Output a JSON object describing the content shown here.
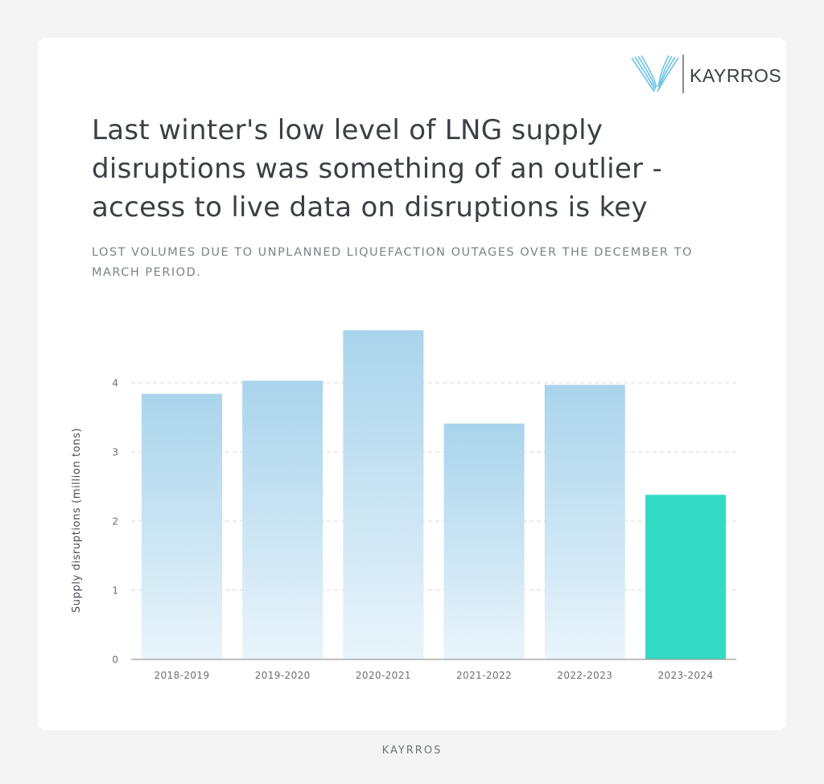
{
  "brand": {
    "logo_text": "KAYRROS",
    "footer_text": "KAYRROS"
  },
  "header": {
    "title": "Last winter's low level of LNG supply disruptions was something of an outlier - access to live data on disruptions is key",
    "subtitle": "LOST VOLUMES DUE TO UNPLANNED LIQUEFACTION OUTAGES OVER THE DECEMBER TO MARCH PERIOD."
  },
  "colors": {
    "bar_top": "#a9d4ec",
    "bar_bottom": "#e9f4fb",
    "highlight": "#33dbc4",
    "grid": "#d9d9d9",
    "axis": "#9a9a9a",
    "tick_text": "#6e6e6e"
  },
  "chart_data": {
    "type": "bar",
    "title": "",
    "xlabel": "",
    "ylabel": "Supply disruptions (million tons)",
    "categories": [
      "2018-2019",
      "2019-2020",
      "2020-2021",
      "2021-2022",
      "2022-2023",
      "2023-2024"
    ],
    "values": [
      3.84,
      4.03,
      4.76,
      3.41,
      3.97,
      2.38
    ],
    "highlight_index": 5,
    "ylim": [
      0,
      5
    ],
    "yticks": [
      0,
      1,
      2,
      3,
      4
    ],
    "grid": true,
    "legend": "none"
  }
}
